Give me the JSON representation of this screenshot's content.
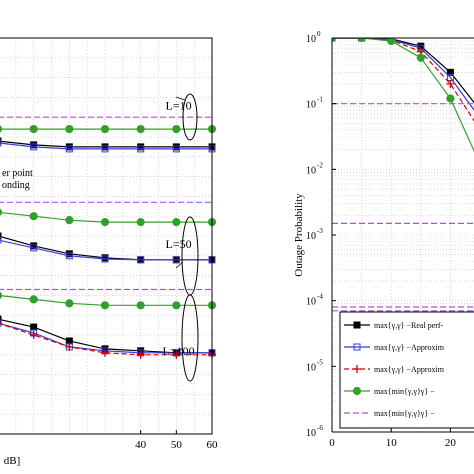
{
  "chart_data": [
    {
      "type": "line",
      "xlabel": "dB]",
      "xlim": [
        0,
        60
      ],
      "xticks": [
        "40",
        "50",
        "60"
      ],
      "xtick_values": [
        40,
        50,
        60
      ],
      "grid": true,
      "annotations": [
        {
          "text": "L=10",
          "x": 54,
          "y": 8.2
        },
        {
          "text": "L=50",
          "x": 54,
          "y": 4.7
        },
        {
          "text": "L=100",
          "x": 54,
          "y": 2.0
        }
      ],
      "partial_text": [
        "er point",
        "onding"
      ],
      "series": [
        {
          "style": "green-circle",
          "x": [
            0,
            10,
            20,
            30,
            40,
            50,
            60
          ],
          "values": [
            7.7,
            7.7,
            7.7,
            7.7,
            7.7,
            7.7,
            7.7
          ]
        },
        {
          "style": "black-square",
          "x": [
            0,
            10,
            20,
            30,
            40,
            50,
            60
          ],
          "values": [
            7.4,
            7.3,
            7.25,
            7.25,
            7.25,
            7.25,
            7.25
          ]
        },
        {
          "style": "blue-square",
          "x": [
            0,
            10,
            20,
            30,
            40,
            50,
            60
          ],
          "values": [
            7.35,
            7.25,
            7.2,
            7.2,
            7.2,
            7.2,
            7.2
          ]
        },
        {
          "style": "purple-dashed",
          "x": [
            0,
            60
          ],
          "values": [
            8.0,
            8.0
          ]
        },
        {
          "style": "green-circle",
          "x": [
            0,
            10,
            20,
            30,
            40,
            50,
            60
          ],
          "values": [
            5.6,
            5.5,
            5.4,
            5.35,
            5.35,
            5.35,
            5.35
          ]
        },
        {
          "style": "black-square",
          "x": [
            0,
            10,
            20,
            30,
            40,
            50,
            60
          ],
          "values": [
            5.0,
            4.75,
            4.55,
            4.45,
            4.4,
            4.4,
            4.4
          ]
        },
        {
          "style": "blue-square",
          "x": [
            0,
            10,
            20,
            30,
            40,
            50,
            60
          ],
          "values": [
            4.9,
            4.7,
            4.5,
            4.42,
            4.4,
            4.4,
            4.4
          ]
        },
        {
          "style": "purple-dashed",
          "x": [
            0,
            60
          ],
          "values": [
            5.85,
            5.85
          ]
        },
        {
          "style": "green-circle",
          "x": [
            0,
            10,
            20,
            30,
            40,
            50,
            60
          ],
          "values": [
            3.5,
            3.4,
            3.3,
            3.25,
            3.25,
            3.25,
            3.25
          ]
        },
        {
          "style": "black-square",
          "x": [
            0,
            10,
            20,
            30,
            40,
            50,
            60
          ],
          "values": [
            2.9,
            2.7,
            2.35,
            2.15,
            2.1,
            2.05,
            2.05
          ]
        },
        {
          "style": "blue-square",
          "x": [
            0,
            10,
            20,
            30,
            40,
            50,
            60
          ],
          "values": [
            2.8,
            2.55,
            2.2,
            2.1,
            2.05,
            2.05,
            2.05
          ]
        },
        {
          "style": "red-plus",
          "x": [
            0,
            10,
            20,
            30,
            40,
            50,
            60
          ],
          "values": [
            2.8,
            2.5,
            2.2,
            2.05,
            2.0,
            2.0,
            2.0
          ]
        },
        {
          "style": "purple-dashed",
          "x": [
            0,
            60
          ],
          "values": [
            3.65,
            3.65
          ]
        }
      ]
    },
    {
      "type": "line",
      "ylabel": "Outage Probability",
      "yscale": "log",
      "ylim": [
        1e-06,
        1
      ],
      "xlim": [
        0,
        25
      ],
      "xticks": [
        "0",
        "10",
        "20"
      ],
      "xtick_values": [
        0,
        10,
        20
      ],
      "yticks": [
        "10",
        "10",
        "10",
        "10",
        "10",
        "10",
        "10"
      ],
      "ytick_exponents": [
        "0",
        "-1",
        "-2",
        "-3",
        "-4",
        "-5",
        "-6"
      ],
      "ytick_values": [
        1,
        0.1,
        0.01,
        0.001,
        0.0001,
        1e-05,
        1e-06
      ],
      "grid": true,
      "legend": {
        "position": "bottom-right",
        "entries": [
          {
            "label": "max{γ,γ} −Real perf-",
            "style": "black-square"
          },
          {
            "label": "max{γ,γ} −Approxim",
            "style": "blue-square"
          },
          {
            "label": "max{γ,γ} −Approxim",
            "style": "red-plus"
          },
          {
            "label": "max{min{γ,γ}γ} −",
            "style": "green-circle"
          },
          {
            "label": "max{min{γ,γ}γ} −",
            "style": "purple-dashed"
          }
        ]
      },
      "series": [
        {
          "style": "black-square",
          "x": [
            0,
            5,
            10,
            15,
            20,
            25
          ],
          "values": [
            1,
            1,
            0.97,
            0.75,
            0.3,
            0.08
          ]
        },
        {
          "style": "blue-square",
          "x": [
            0,
            5,
            10,
            15,
            20,
            25
          ],
          "values": [
            1,
            1,
            0.95,
            0.7,
            0.25,
            0.06
          ]
        },
        {
          "style": "red-plus",
          "x": [
            0,
            5,
            10,
            15,
            20,
            25
          ],
          "values": [
            1,
            1,
            0.93,
            0.62,
            0.2,
            0.04
          ]
        },
        {
          "style": "green-circle",
          "x": [
            0,
            5,
            10,
            15,
            20,
            25
          ],
          "values": [
            1,
            1,
            0.9,
            0.5,
            0.12,
            0.012
          ]
        },
        {
          "style": "purple-dashed",
          "x": [
            0,
            25
          ],
          "values": [
            0.1,
            0.1
          ]
        },
        {
          "style": "purple-dashed",
          "x": [
            0,
            25
          ],
          "values": [
            0.0015,
            0.0015
          ]
        },
        {
          "style": "purple-dashed",
          "x": [
            0,
            25
          ],
          "values": [
            8e-05,
            8e-05
          ]
        },
        {
          "style": "purple-dashed",
          "x": [
            0,
            25
          ],
          "values": [
            7e-05,
            7e-05
          ]
        }
      ]
    }
  ]
}
